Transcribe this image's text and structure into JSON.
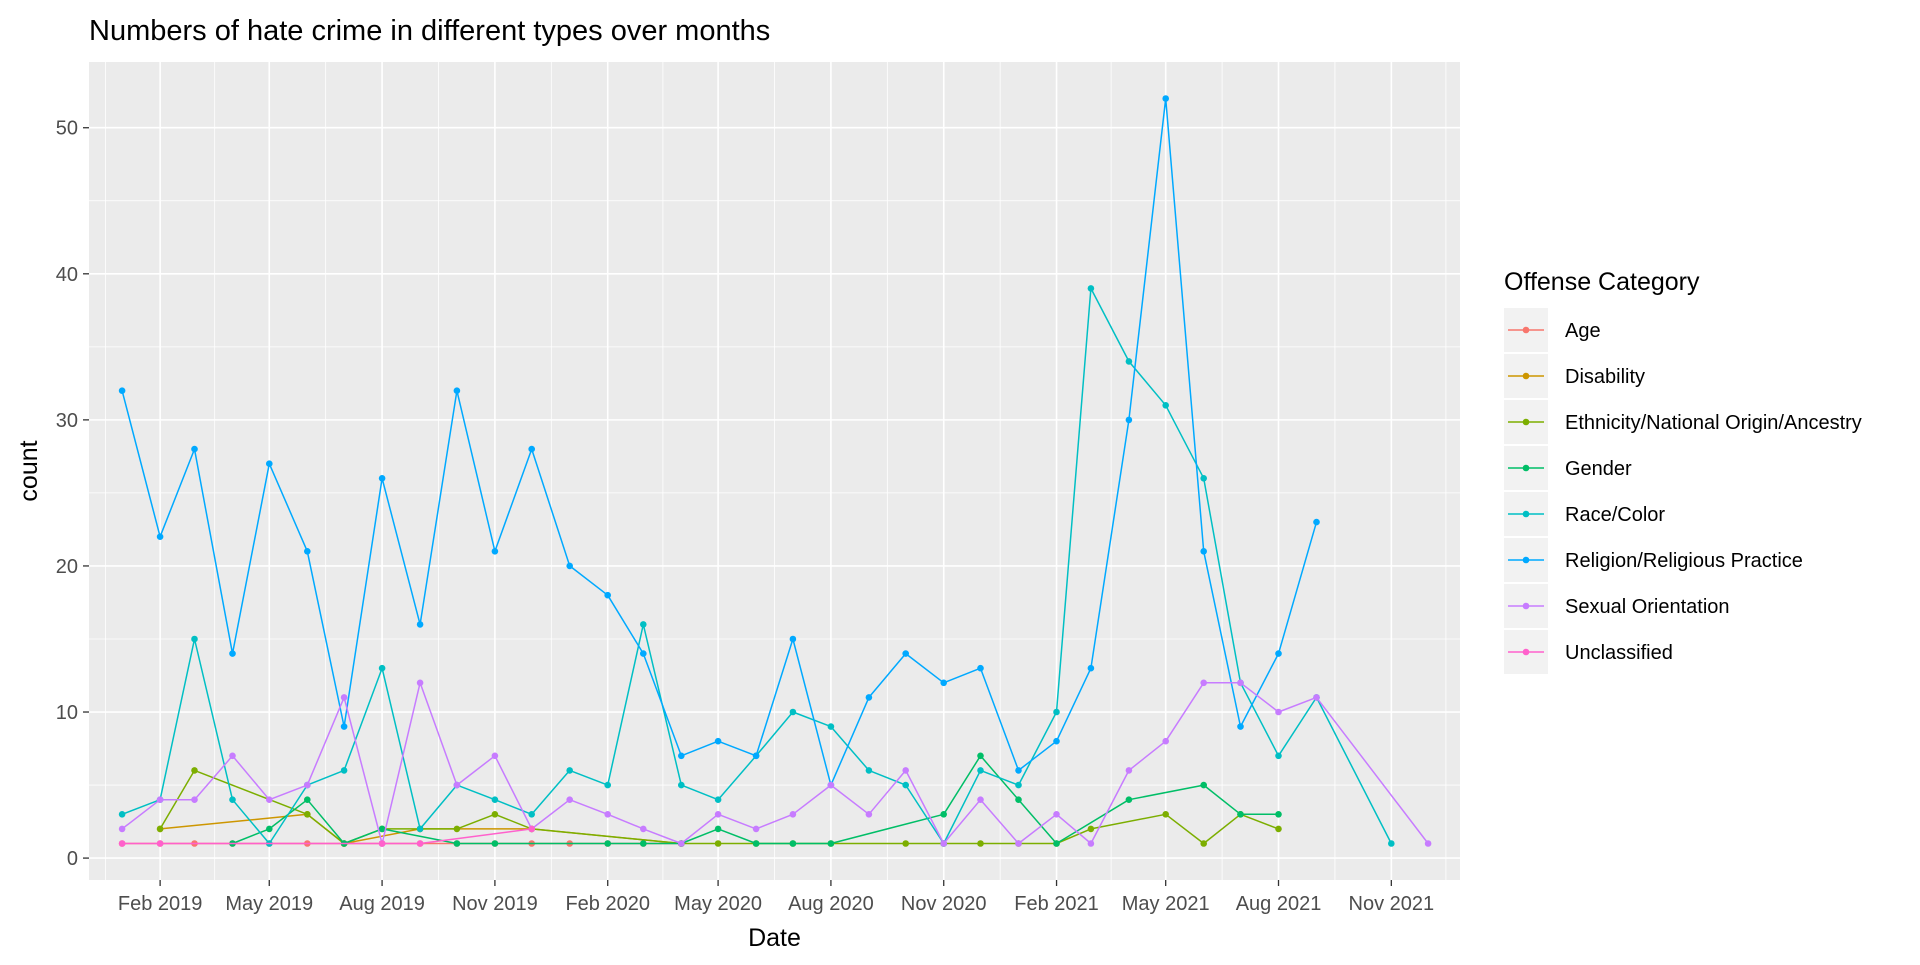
{
  "chart_data": {
    "type": "line",
    "title": "Numbers of hate crime in different types over months",
    "xlabel": "Date",
    "ylabel": "count",
    "xlim": [
      "2018-12-05",
      "2021-12-27"
    ],
    "ylim": [
      -1.5,
      54.5
    ],
    "x_ticks": [
      "2019-02-01",
      "2019-05-01",
      "2019-08-01",
      "2019-11-01",
      "2020-02-01",
      "2020-05-01",
      "2020-08-01",
      "2020-11-01",
      "2021-02-01",
      "2021-05-01",
      "2021-08-01",
      "2021-11-01"
    ],
    "x_tick_labels": [
      "Feb 2019",
      "May 2019",
      "Aug 2019",
      "Nov 2019",
      "Feb 2020",
      "May 2020",
      "Aug 2020",
      "Nov 2020",
      "Feb 2021",
      "May 2021",
      "Aug 2021",
      "Nov 2021"
    ],
    "y_ticks": [
      0,
      10,
      20,
      30,
      40,
      50
    ],
    "y_tick_labels": [
      "0",
      "10",
      "20",
      "30",
      "40",
      "50"
    ],
    "grid": true,
    "legend": {
      "title": "Offense Category",
      "position": "right"
    },
    "series": [
      {
        "name": "Age",
        "color": "#F8766D",
        "x": [
          "2019-01-01",
          "2019-02-01",
          "2019-03-01",
          "2019-04-01",
          "2019-05-01",
          "2019-06-01",
          "2019-07-01",
          "2019-08-01",
          "2019-09-01",
          "2019-10-01",
          "2019-11-01",
          "2019-12-01",
          "2020-01-01",
          "2020-02-01",
          "2020-03-01",
          "2020-04-01"
        ],
        "y": [
          1,
          1,
          1,
          1,
          1,
          1,
          1,
          1,
          1,
          1,
          1,
          1,
          1,
          1,
          1,
          1
        ]
      },
      {
        "name": "Disability",
        "color": "#CD9600",
        "x": [
          "2019-02-01",
          "2019-06-01",
          "2019-07-01",
          "2019-09-01",
          "2019-12-01",
          "2020-04-01"
        ],
        "y": [
          2,
          3,
          1,
          2,
          2,
          1
        ]
      },
      {
        "name": "Ethnicity/National Origin/Ancestry",
        "color": "#7CAE00",
        "x": [
          "2019-02-01",
          "2019-03-01",
          "2019-06-01",
          "2019-07-01",
          "2019-08-01",
          "2019-09-01",
          "2019-10-01",
          "2019-11-01",
          "2019-12-01",
          "2020-04-01",
          "2020-05-01",
          "2020-06-01",
          "2020-07-01",
          "2020-08-01",
          "2020-10-01",
          "2020-11-01",
          "2020-12-01",
          "2021-01-01",
          "2021-02-01",
          "2021-03-01",
          "2021-05-01",
          "2021-06-01",
          "2021-07-01",
          "2021-08-01"
        ],
        "y": [
          2,
          6,
          3,
          1,
          2,
          2,
          2,
          3,
          2,
          1,
          1,
          1,
          1,
          1,
          1,
          1,
          1,
          1,
          1,
          2,
          3,
          1,
          3,
          2
        ]
      },
      {
        "name": "Gender",
        "color": "#00BE67",
        "x": [
          "2019-04-01",
          "2019-05-01",
          "2019-06-01",
          "2019-07-01",
          "2019-08-01",
          "2019-10-01",
          "2019-11-01",
          "2020-02-01",
          "2020-03-01",
          "2020-04-01",
          "2020-05-01",
          "2020-06-01",
          "2020-07-01",
          "2020-08-01",
          "2020-11-01",
          "2020-12-01",
          "2021-01-01",
          "2021-02-01",
          "2021-04-01",
          "2021-06-01",
          "2021-07-01",
          "2021-08-01"
        ],
        "y": [
          1,
          2,
          4,
          1,
          2,
          1,
          1,
          1,
          1,
          1,
          2,
          1,
          1,
          1,
          3,
          7,
          4,
          1,
          4,
          5,
          3,
          3
        ]
      },
      {
        "name": "Race/Color",
        "color": "#00BFC4",
        "x": [
          "2019-01-01",
          "2019-02-01",
          "2019-03-01",
          "2019-04-01",
          "2019-05-01",
          "2019-06-01",
          "2019-07-01",
          "2019-08-01",
          "2019-09-01",
          "2019-10-01",
          "2019-11-01",
          "2019-12-01",
          "2020-01-01",
          "2020-02-01",
          "2020-03-01",
          "2020-04-01",
          "2020-05-01",
          "2020-06-01",
          "2020-07-01",
          "2020-08-01",
          "2020-09-01",
          "2020-10-01",
          "2020-11-01",
          "2020-12-01",
          "2021-01-01",
          "2021-02-01",
          "2021-03-01",
          "2021-04-01",
          "2021-05-01",
          "2021-06-01",
          "2021-07-01",
          "2021-08-01",
          "2021-09-01",
          "2021-11-01"
        ],
        "y": [
          3,
          4,
          15,
          4,
          1,
          5,
          6,
          13,
          2,
          5,
          4,
          3,
          6,
          5,
          16,
          5,
          4,
          7,
          10,
          9,
          6,
          5,
          1,
          6,
          5,
          10,
          39,
          34,
          31,
          26,
          12,
          7,
          11,
          1
        ]
      },
      {
        "name": "Religion/Religious Practice",
        "color": "#00A9FF",
        "x": [
          "2019-01-01",
          "2019-02-01",
          "2019-03-01",
          "2019-04-01",
          "2019-05-01",
          "2019-06-01",
          "2019-07-01",
          "2019-08-01",
          "2019-09-01",
          "2019-10-01",
          "2019-11-01",
          "2019-12-01",
          "2020-01-01",
          "2020-02-01",
          "2020-03-01",
          "2020-04-01",
          "2020-05-01",
          "2020-06-01",
          "2020-07-01",
          "2020-08-01",
          "2020-09-01",
          "2020-10-01",
          "2020-11-01",
          "2020-12-01",
          "2021-01-01",
          "2021-02-01",
          "2021-03-01",
          "2021-04-01",
          "2021-05-01",
          "2021-06-01",
          "2021-07-01",
          "2021-08-01",
          "2021-09-01"
        ],
        "y": [
          32,
          22,
          28,
          14,
          27,
          21,
          9,
          26,
          16,
          32,
          21,
          28,
          20,
          18,
          14,
          7,
          8,
          7,
          15,
          5,
          11,
          14,
          12,
          13,
          6,
          8,
          13,
          30,
          52,
          21,
          9,
          14,
          23
        ]
      },
      {
        "name": "Sexual Orientation",
        "color": "#C77CFF",
        "x": [
          "2019-01-01",
          "2019-02-01",
          "2019-03-01",
          "2019-04-01",
          "2019-05-01",
          "2019-06-01",
          "2019-07-01",
          "2019-08-01",
          "2019-09-01",
          "2019-10-01",
          "2019-11-01",
          "2019-12-01",
          "2020-01-01",
          "2020-02-01",
          "2020-03-01",
          "2020-04-01",
          "2020-05-01",
          "2020-06-01",
          "2020-07-01",
          "2020-08-01",
          "2020-09-01",
          "2020-10-01",
          "2020-11-01",
          "2020-12-01",
          "2021-01-01",
          "2021-02-01",
          "2021-03-01",
          "2021-04-01",
          "2021-05-01",
          "2021-06-01",
          "2021-07-01",
          "2021-08-01",
          "2021-09-01",
          "2021-12-01"
        ],
        "y": [
          2,
          4,
          4,
          7,
          4,
          5,
          11,
          1,
          12,
          5,
          7,
          2,
          4,
          3,
          2,
          1,
          3,
          2,
          3,
          5,
          3,
          6,
          1,
          4,
          1,
          3,
          1,
          6,
          8,
          12,
          12,
          10,
          11,
          1
        ]
      },
      {
        "name": "Unclassified",
        "color": "#FF61CC",
        "x": [
          "2019-01-01",
          "2019-02-01",
          "2019-08-01",
          "2019-09-01",
          "2019-12-01"
        ],
        "y": [
          1,
          1,
          1,
          1,
          2
        ]
      }
    ]
  }
}
